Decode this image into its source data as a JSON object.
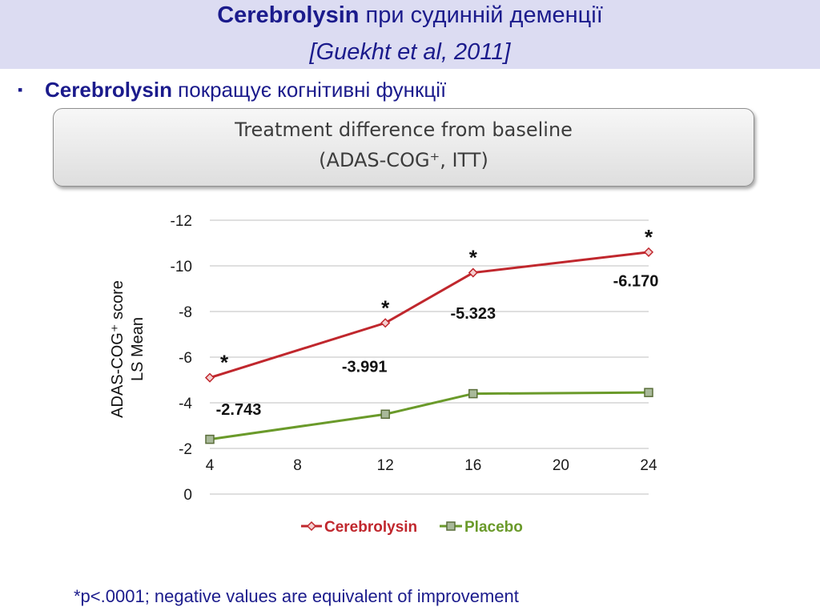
{
  "header": {
    "title_bold": "Cerebrolysin",
    "title_rest": " при судинній деменції",
    "citation": "[Guekht et al, 2011]"
  },
  "bullet": {
    "marker": "▪",
    "bold": "Cerebrolysin",
    "rest": " покращує когнітивні функції"
  },
  "banner": {
    "line1": "Treatment difference from baseline",
    "line2": "(ADAS-COG⁺, ITT)"
  },
  "chart_data": {
    "type": "line",
    "ylabel_line1": "ADAS-COG⁺ score",
    "ylabel_line2": "LS Mean",
    "ylim": [
      0,
      -12
    ],
    "yticks": [
      "-12",
      "-10",
      "-8",
      "-6",
      "-4",
      "-2",
      "0"
    ],
    "xticks": [
      "4",
      "8",
      "12",
      "16",
      "20",
      "24"
    ],
    "grid": true,
    "legend_position": "bottom",
    "series": [
      {
        "name": "Cerebrolysin",
        "color": "#c0272d",
        "marker": "diamond",
        "x": [
          4,
          12,
          16,
          24
        ],
        "y": [
          -5.1,
          -7.5,
          -9.7,
          -10.6
        ],
        "significance": [
          "*",
          "*",
          "*",
          "*"
        ]
      },
      {
        "name": "Placebo",
        "color": "#6a9a2a",
        "marker": "square",
        "x": [
          4,
          12,
          16,
          24
        ],
        "y": [
          -2.4,
          -3.5,
          -4.4,
          -4.45
        ]
      }
    ],
    "difference_labels": [
      {
        "x": 4,
        "text": "-2.743"
      },
      {
        "x": 12,
        "text": "-3.991"
      },
      {
        "x": 16,
        "text": "-5.323"
      },
      {
        "x": 24,
        "text": "-6.170"
      }
    ]
  },
  "footnote": "*p<.0001; negative values are equivalent of improvement"
}
